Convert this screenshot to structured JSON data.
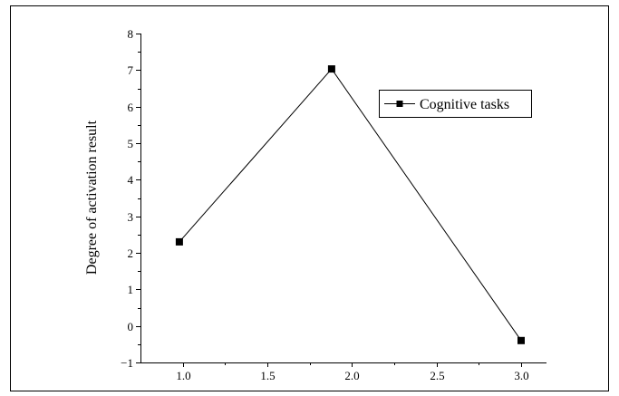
{
  "chart_data": {
    "type": "line",
    "ylabel": "Degree of activation result",
    "xlabel": "",
    "xlim": [
      0.75,
      3.15
    ],
    "ylim": [
      -1,
      8
    ],
    "x_ticks": [
      1.0,
      1.5,
      2.0,
      2.5,
      3.0
    ],
    "x_tick_labels": [
      "1.0",
      "1.5",
      "2.0",
      "2.5",
      "3.0"
    ],
    "y_ticks": [
      -1,
      0,
      1,
      2,
      3,
      4,
      5,
      6,
      7,
      8
    ],
    "y_tick_labels": [
      "−1",
      "0",
      "1",
      "2",
      "3",
      "4",
      "5",
      "6",
      "7",
      "8"
    ],
    "grid": false,
    "legend_position": "top-right",
    "series": [
      {
        "name": "Cognitive tasks",
        "color": "#000000",
        "marker": "square",
        "x": [
          0.98,
          1.88,
          3.0
        ],
        "y": [
          2.3,
          7.03,
          -0.4
        ]
      }
    ]
  }
}
